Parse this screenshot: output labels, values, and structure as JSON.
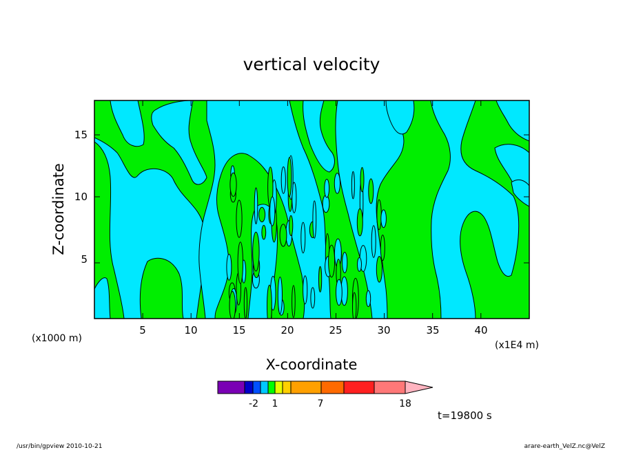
{
  "chart_data": {
    "type": "heatmap",
    "title": "vertical velocity",
    "xlabel": "X-coordinate",
    "ylabel": "Z-coordinate",
    "x_unit_left": "(x1000 m)",
    "x_unit_right": "(x1E4 m)",
    "xlim": [
      0,
      45
    ],
    "ylim": [
      0,
      17.5
    ],
    "x_ticks": [
      "5",
      "10",
      "15",
      "20",
      "25",
      "30",
      "35",
      "40"
    ],
    "y_ticks": [
      "5",
      "10",
      "15"
    ],
    "fill_levels": [
      {
        "name": "negative",
        "color": "#00e8ff"
      },
      {
        "name": "positive",
        "color": "#00ee00"
      }
    ],
    "colorbar": {
      "tick_labels": [
        "-2",
        "1",
        "7",
        "18"
      ],
      "colors": [
        "#7a00b4",
        "#0000c8",
        "#0050ff",
        "#00c8ff",
        "#00ff00",
        "#e8ff00",
        "#ffd000",
        "#ffa000",
        "#ff6a00",
        "#ff2020",
        "#ff7878",
        "#ffb4c0"
      ]
    },
    "time_label": "t=19800 s"
  },
  "footer": {
    "left": "/usr/bin/gpview  2010-10-21",
    "right": "arare-earth_VelZ.nc@VelZ"
  }
}
